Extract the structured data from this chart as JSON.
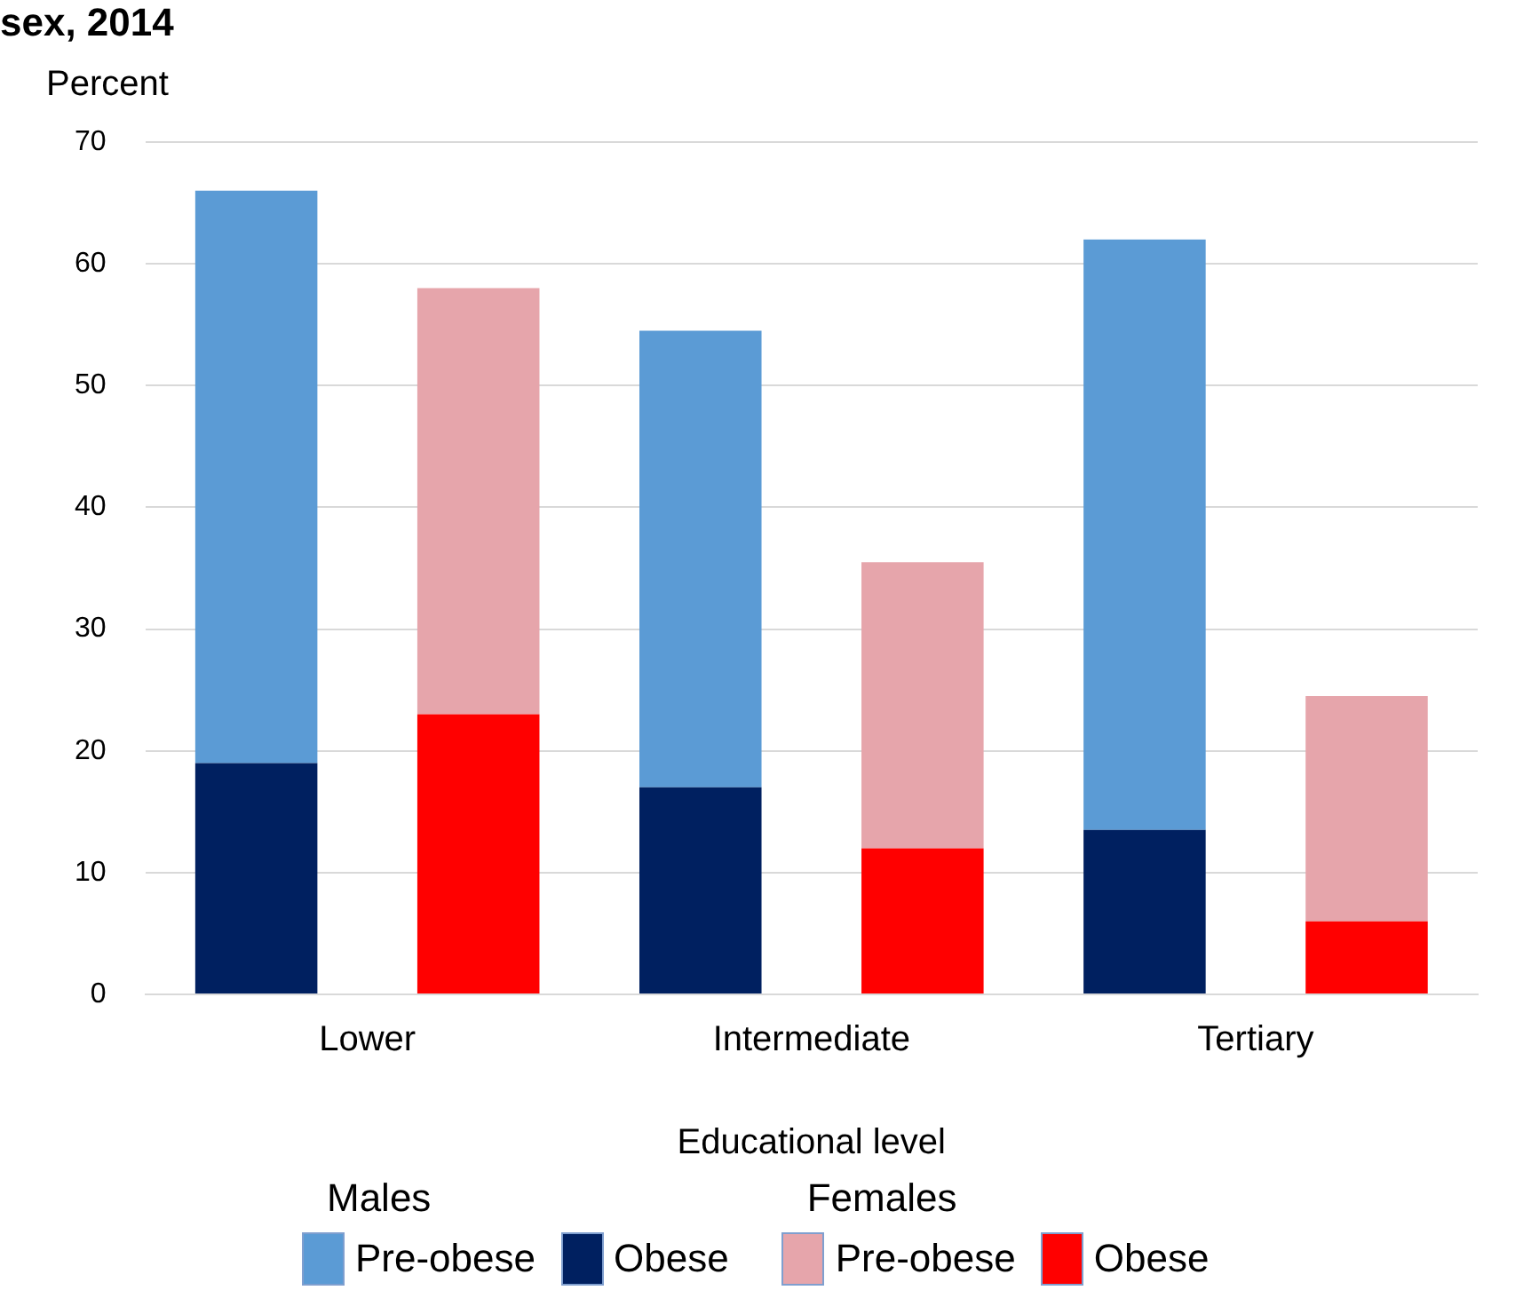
{
  "chart_data": {
    "type": "bar",
    "title": "sex, 2014",
    "xlabel": "Educational level",
    "ylabel": "Percent",
    "categories": [
      "Lower",
      null,
      "Intermediate",
      null,
      "Tertiary",
      null
    ],
    "stacked": true,
    "ylim": [
      0,
      70
    ],
    "yticks": [
      0,
      10,
      20,
      30,
      40,
      50,
      60,
      70
    ],
    "grid": "y",
    "legend": "bottom",
    "annotations": [
      "Males",
      "Females"
    ],
    "series": [
      {
        "name": "Obese",
        "color": "#002060",
        "values": [
          19,
          null,
          17,
          null,
          13.5,
          null
        ]
      },
      {
        "name": "Pre-obese",
        "color": "#5b9bd5",
        "values": [
          47,
          null,
          37.5,
          null,
          48.5,
          null
        ]
      },
      {
        "name": "Obese",
        "color": "#ff0000",
        "values": [
          null,
          23,
          null,
          12,
          null,
          6
        ]
      },
      {
        "name": "Pre-obese",
        "color": "#e6a5ab",
        "values": [
          null,
          35,
          null,
          23.5,
          null,
          18.5
        ]
      }
    ]
  }
}
